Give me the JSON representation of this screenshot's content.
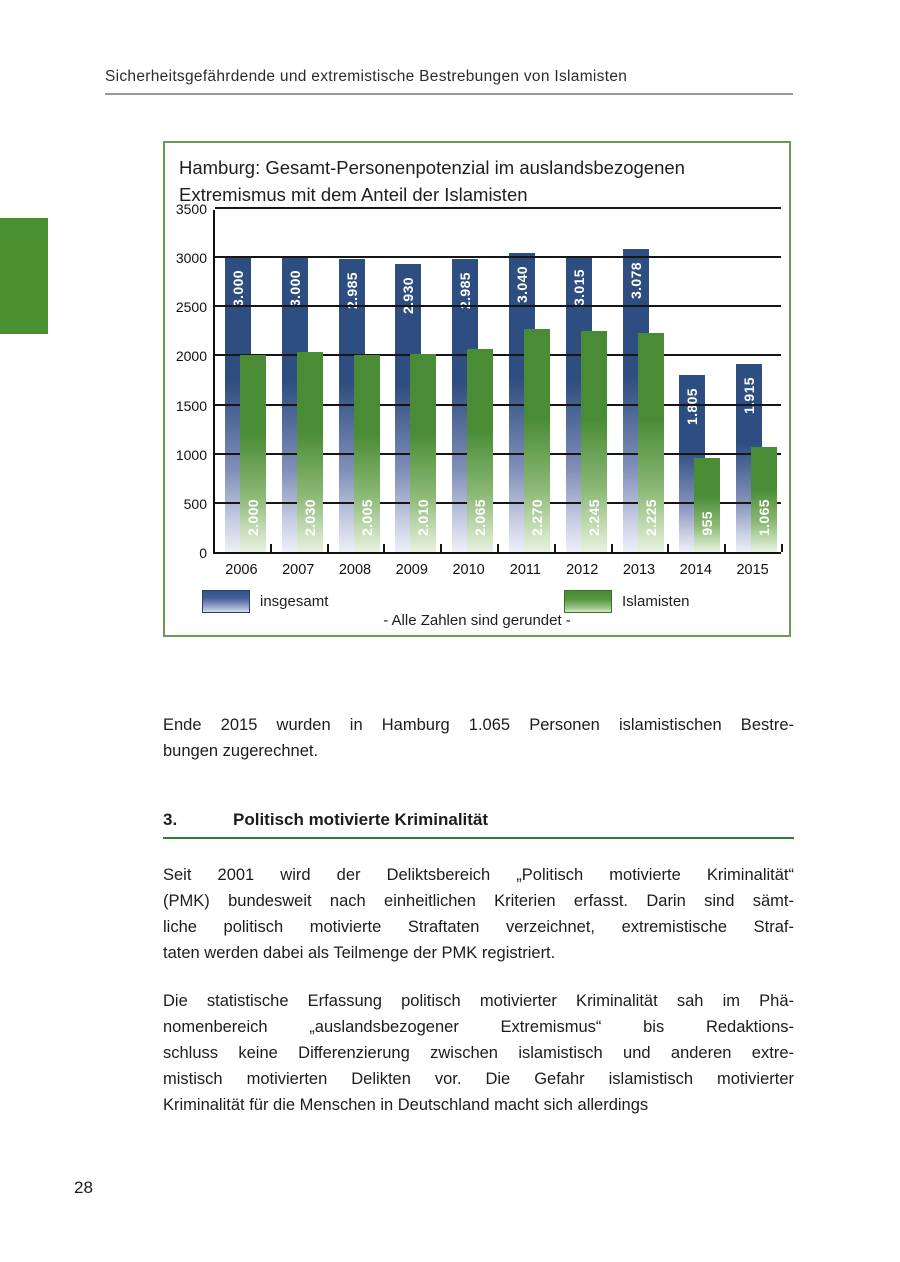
{
  "page": {
    "header": "Sicherheitsgefährdende und extremistische Bestrebungen von Islamisten",
    "page_number": "28"
  },
  "chart": {
    "title_lines": [
      "Hamburg: Gesamt-Personenpotenzial im auslandsbezogenen",
      "Extremismus mit dem Anteil der Islamisten"
    ],
    "legend": [
      {
        "label": "insgesamt"
      },
      {
        "label": "Islamisten"
      }
    ],
    "footnote": "- Alle Zahlen sind gerundet -"
  },
  "chart_data": {
    "type": "bar",
    "title": "Hamburg: Gesamt-Personenpotenzial im auslandsbezogenen Extremismus mit dem Anteil der Islamisten",
    "categories": [
      "2006",
      "2007",
      "2008",
      "2009",
      "2010",
      "2011",
      "2012",
      "2013",
      "2014",
      "2015"
    ],
    "series": [
      {
        "name": "insgesamt",
        "color": "#2e4d80",
        "values": [
          3000,
          3000,
          2985,
          2930,
          2985,
          3040,
          3015,
          3078,
          1805,
          1915
        ],
        "labels": [
          "3.000",
          "3.000",
          "2.985",
          "2.930",
          "2.985",
          "3.040",
          "3.015",
          "3.078",
          "1.805",
          "1.915"
        ]
      },
      {
        "name": "Islamisten",
        "color": "#4a8c36",
        "values": [
          2000,
          2030,
          2005,
          2010,
          2065,
          2270,
          2245,
          2225,
          955,
          1065
        ],
        "labels": [
          "2.000",
          "2.030",
          "2.005",
          "2.010",
          "2.065",
          "2.270",
          "2.245",
          "2.225",
          "955",
          "1.065"
        ]
      }
    ],
    "xlabel": "",
    "ylabel": "",
    "ylim": [
      0,
      3500
    ],
    "ytick_step": 500,
    "grid": true,
    "legend_position": "bottom",
    "annotation": "- Alle Zahlen sind gerundet -"
  },
  "body": {
    "para1_lines": [
      "Ende 2015 wurden in Hamburg 1.065 Personen islamistischen Bestre-",
      "bungen zugerechnet."
    ],
    "section_number": "3.",
    "section_title": "Politisch motivierte Kriminalität",
    "para2_lines": [
      "Seit 2001 wird der Deliktsbereich „Politisch motivierte Kriminalität“",
      "(PMK) bundesweit nach einheitlichen Kriterien erfasst. Darin sind sämt-",
      "liche politisch motivierte Straftaten verzeichnet, extremistische Straf-",
      "taten werden dabei als Teilmenge der PMK registriert."
    ],
    "para3_lines": [
      "Die statistische Erfassung politisch motivierter Kriminalität sah im Phä-",
      "nomenbereich „auslandsbezogener Extremismus“ bis Redaktions-",
      "schluss keine Differenzierung zwischen islamistisch und anderen extre-",
      "mistisch motivierten Delikten vor. Die Gefahr islamistisch motivierter",
      "Kriminalität für die Menschen in Deutschland macht sich allerdings"
    ]
  },
  "colors": {
    "bar_blue": "#2e4d80",
    "bar_green": "#4a8c36",
    "box_border_green": "#6a9b52",
    "heading_underline_green": "#2e7d32",
    "side_tab_green": "#4a9132",
    "header_rule_gray": "#9a9a9a"
  }
}
